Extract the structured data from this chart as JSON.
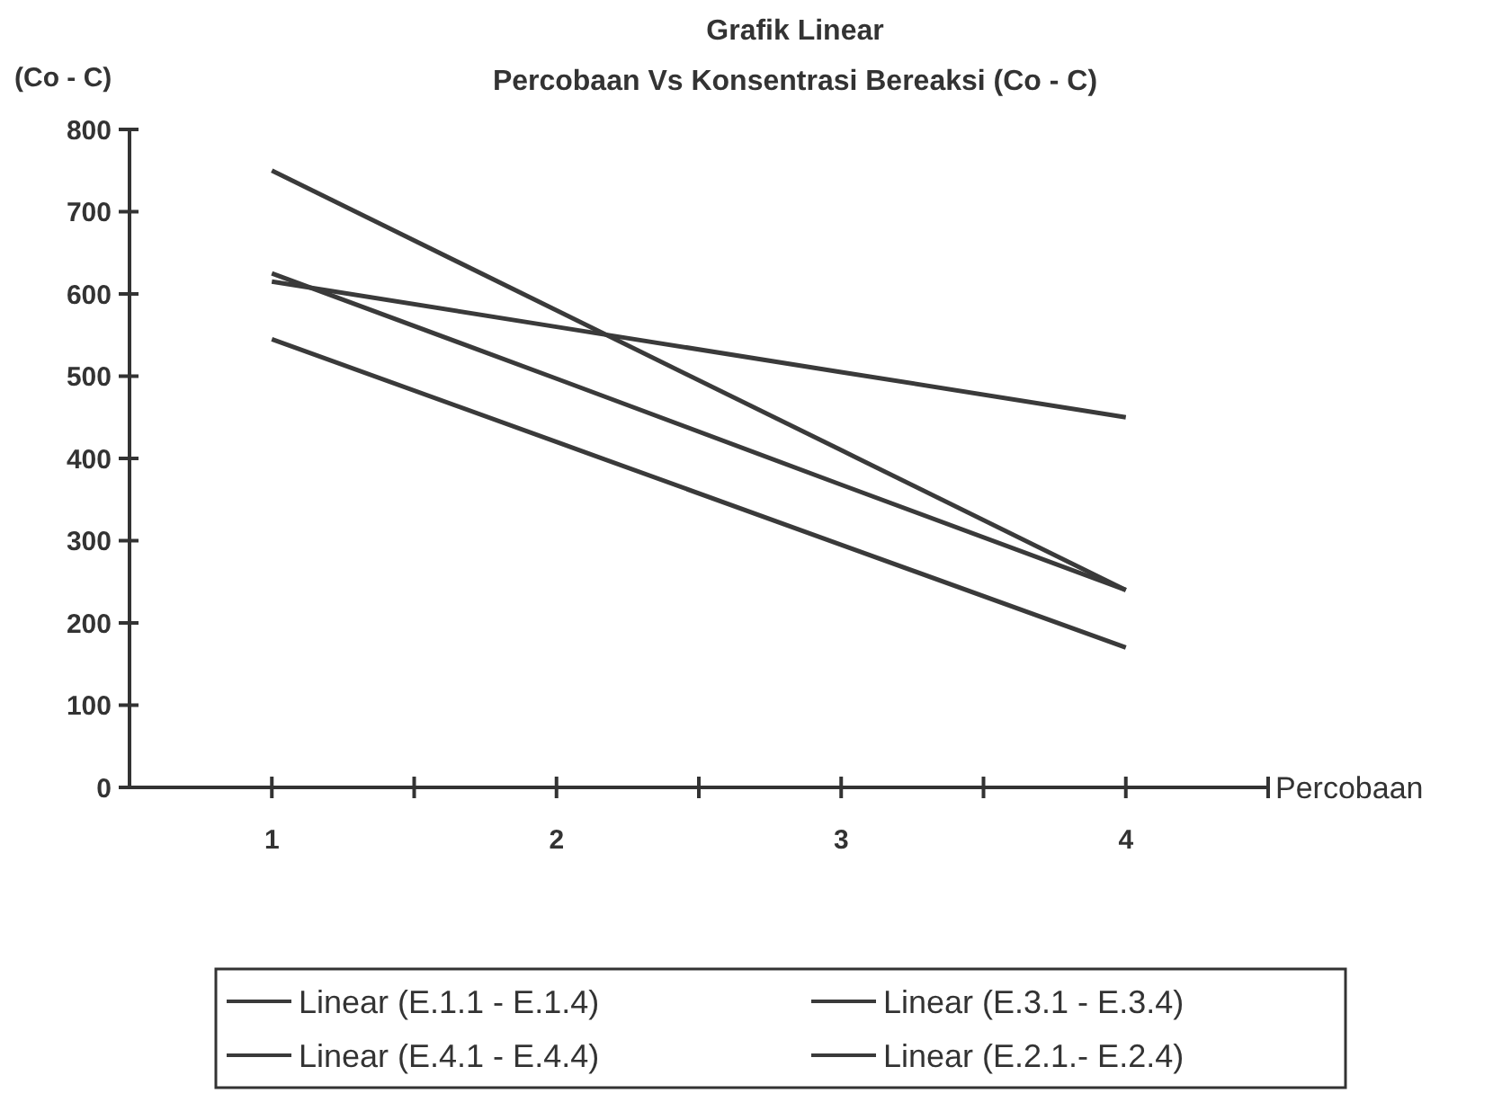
{
  "chart_data": {
    "type": "line",
    "title": "Grafik Linear",
    "subtitle": "Percobaan Vs Konsentrasi Bereaksi (Co - C)",
    "xlabel": "Percobaan",
    "ylabel": "(Co - C)",
    "x": [
      1,
      2,
      3,
      4
    ],
    "xlim": [
      0.5,
      4.5
    ],
    "xticks": [
      1,
      {
        "value": 1.5,
        "label": null
      },
      2,
      {
        "value": 2.5,
        "label": null
      },
      3,
      {
        "value": 3.5,
        "label": null
      },
      4,
      {
        "value": 4.5,
        "label": null
      }
    ],
    "ylim": [
      0,
      800
    ],
    "yticks": [
      0,
      100,
      200,
      300,
      400,
      500,
      600,
      700,
      800
    ],
    "grid": false,
    "legend": "bottom",
    "marker": "none",
    "line_style": "solid",
    "series": [
      {
        "name": "Linear (E.1.1 - E.1.4)",
        "color": "#3a3a3a",
        "values": [
          750,
          580,
          410,
          240
        ]
      },
      {
        "name": "Linear (E.3.1 - E.3.4)",
        "color": "#3a3a3a",
        "values": [
          615,
          560,
          505,
          450
        ]
      },
      {
        "name": "Linear (E.4.1 - E.4.4)",
        "color": "#3a3a3a",
        "values": [
          625,
          497,
          368,
          240
        ]
      },
      {
        "name": "Linear (E.2.1.- E.2.4)",
        "color": "#3a3a3a",
        "values": [
          545,
          420,
          295,
          170
        ]
      }
    ]
  }
}
